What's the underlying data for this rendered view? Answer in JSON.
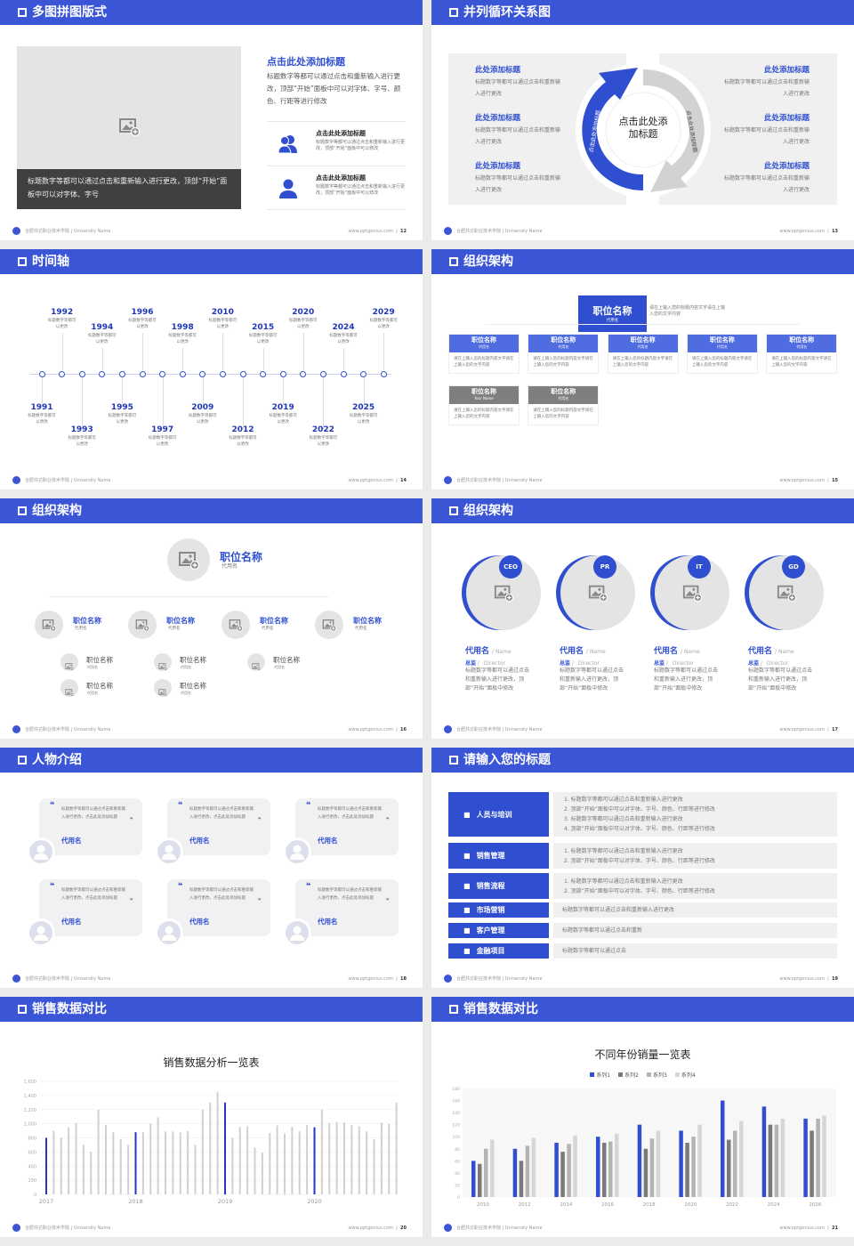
{
  "footer": {
    "school": "合肥共达职业技术学院 | University Name",
    "site": "www.pptgenius.com"
  },
  "colors": {
    "accent": "#3a55d6",
    "gray_bar": "#d0d0d0",
    "dark": "#404040"
  },
  "slides": [
    {
      "title": "多图拼图版式",
      "page": "12",
      "caption": "标题数字等都可以通过点击和重新输入进行更改，顶部“开始”面板中可以对字体、字号",
      "heading": "点击此处添加标题",
      "paragraph": "标题数字等都可以通过点击和重新输入进行更改，顶部“开始”面板中可以对字体、字号、颜色、行距等进行修改",
      "items": [
        {
          "icon": "users-icon",
          "title": "点击此处添加标题",
          "text": "标题数字等都可以通过点击和重新输入进行更改，顶部“开始”面板中可以修改"
        },
        {
          "icon": "user-icon",
          "title": "点击此处添加标题",
          "text": "标题数字等都可以通过点击和重新输入进行更改，顶部“开始”面板中可以修改"
        }
      ]
    },
    {
      "title": "并列循环关系图",
      "page": "13",
      "center": "点击此处添加标题",
      "arc_left": "点击此处添加标题",
      "arc_right": "点击此处添加标题",
      "left_items": [
        {
          "title": "此处添加标题",
          "text": "标题数字等都可以通过点击和重新输入进行更改"
        },
        {
          "title": "此处添加标题",
          "text": "标题数字等都可以通过点击和重新输入进行更改"
        },
        {
          "title": "此处添加标题",
          "text": "标题数字等都可以通过点击和重新输入进行更改"
        }
      ],
      "right_items": [
        {
          "title": "此处添加标题",
          "text": "标题数字等都可以通过点击和重新输入进行更改"
        },
        {
          "title": "此处添加标题",
          "text": "标题数字等都可以通过点击和重新输入进行更改"
        },
        {
          "title": "此处添加标题",
          "text": "标题数字等都可以通过点击和重新输入进行更改"
        }
      ]
    },
    {
      "title": "时间轴",
      "page": "14",
      "events": [
        {
          "year": "1991",
          "text": "标题数字等都可以更改"
        },
        {
          "year": "1992",
          "text": "标题数字等都可以更改"
        },
        {
          "year": "1993",
          "text": "标题数字等都可以更改"
        },
        {
          "year": "1994",
          "text": "标题数字等都可以更改"
        },
        {
          "year": "1995",
          "text": "标题数字等都可以更改"
        },
        {
          "year": "1996",
          "text": "标题数字等都可以更改"
        },
        {
          "year": "1997",
          "text": "标题数字等都可以更改"
        },
        {
          "year": "1998",
          "text": "标题数字等都可以更改"
        },
        {
          "year": "2009",
          "text": "标题数字等都可以更改"
        },
        {
          "year": "2010",
          "text": "标题数字等都可以更改"
        },
        {
          "year": "2012",
          "text": "标题数字等都可以更改"
        },
        {
          "year": "2015",
          "text": "标题数字等都可以更改"
        },
        {
          "year": "2019",
          "text": "标题数字等都可以更改"
        },
        {
          "year": "2020",
          "text": "标题数字等都可以更改"
        },
        {
          "year": "2022",
          "text": "标题数字等都可以更改"
        },
        {
          "year": "2024",
          "text": "标题数字等都可以更改"
        },
        {
          "year": "2025",
          "text": "标题数字等都可以更改"
        },
        {
          "year": "2029",
          "text": "标题数字等都可以更改"
        }
      ]
    },
    {
      "title": "组织架构",
      "page": "15",
      "top": {
        "name": "职位名称",
        "sub": "代用名",
        "text": "请在上输入您的标题内容文字请在上输入您的文字内容"
      },
      "row1": [
        {
          "name": "职位名称",
          "sub": "代用名",
          "text": "请在上输入您的标题内容文字请在上输入您的文字内容"
        },
        {
          "name": "职位名称",
          "sub": "代用名",
          "text": "请在上输入您的标题内容文字请在上输入您的文字内容"
        },
        {
          "name": "职位名称",
          "sub": "代用名",
          "text": "请在上输入您的标题内容文字请在上输入您的文字内容"
        },
        {
          "name": "职位名称",
          "sub": "代用名",
          "text": "请在上输入您的标题内容文字请在上输入您的文字内容"
        },
        {
          "name": "职位名称",
          "sub": "代用名",
          "text": "请在上输入您的标题内容文字请在上输入您的文字内容"
        }
      ],
      "row2": [
        {
          "name": "职位名称",
          "sub": "Your Name",
          "text": "请在上输入您的标题内容文字请在上输入您的文字内容"
        },
        {
          "name": "职位名称",
          "sub": "代用名",
          "text": "请在上输入您的标题内容文字请在上输入您的文字内容"
        }
      ]
    },
    {
      "title": "组织架构",
      "page": "16",
      "top": {
        "name": "职位名称",
        "sub": "代用名"
      },
      "level2": [
        {
          "name": "职位名称",
          "sub": "代用名"
        },
        {
          "name": "职位名称",
          "sub": "代用名"
        },
        {
          "name": "职位名称",
          "sub": "代用名"
        },
        {
          "name": "职位名称",
          "sub": "代用名"
        }
      ],
      "level3": [
        [
          {
            "name": "职位名称",
            "sub": "代用名"
          },
          {
            "name": "职位名称",
            "sub": "代用名"
          }
        ],
        [
          {
            "name": "职位名称",
            "sub": "代用名"
          },
          {
            "name": "职位名称",
            "sub": "代用名"
          }
        ],
        [
          {
            "name": "职位名称",
            "sub": "代用名"
          }
        ]
      ]
    },
    {
      "title": "组织架构",
      "page": "17",
      "people": [
        {
          "badge": "CEO",
          "name": "代用名",
          "name_en": "/ Name",
          "role": "总监",
          "role_en": "Director",
          "text": "标题数字等都可以通过点击和重新输入进行更改，顶部“开始”面板中修改"
        },
        {
          "badge": "PR",
          "name": "代用名",
          "name_en": "/ Name",
          "role": "总监",
          "role_en": "Director",
          "text": "标题数字等都可以通过点击和重新输入进行更改，顶部“开始”面板中修改"
        },
        {
          "badge": "IT",
          "name": "代用名",
          "name_en": "/ Name",
          "role": "总监",
          "role_en": "Director",
          "text": "标题数字等都可以通过点击和重新输入进行更改，顶部“开始”面板中修改"
        },
        {
          "badge": "GD",
          "name": "代用名",
          "name_en": "/ Name",
          "role": "总监",
          "role_en": "Director",
          "text": "标题数字等都可以通过点击和重新输入进行更改，顶部“开始”面板中修改"
        }
      ]
    },
    {
      "title": "人物介绍",
      "page": "18",
      "cards": [
        {
          "quote": "标题数字等都可以通过点击和重新输入进行更改，点击此处添加标题",
          "name": "代用名"
        },
        {
          "quote": "标题数字等都可以通过点击和重新输入进行更改，点击此处添加标题",
          "name": "代用名"
        },
        {
          "quote": "标题数字等都可以通过点击和重新输入进行更改，点击此处添加标题",
          "name": "代用名"
        },
        {
          "quote": "标题数字等都可以通过点击和重新输入进行更改，点击此处添加标题",
          "name": "代用名"
        },
        {
          "quote": "标题数字等都可以通过点击和重新输入进行更改，点击此处添加标题",
          "name": "代用名"
        },
        {
          "quote": "标题数字等都可以通过点击和重新输入进行更改，点击此处添加标题",
          "name": "代用名"
        }
      ]
    },
    {
      "title": "请输入您的标题",
      "page": "19",
      "rows": [
        {
          "icon": "training-icon",
          "label": "人员与培训",
          "lines": [
            "1.  标题数字等都可以通过点击和重新输入进行更改",
            "2.  顶部“开始”面板中可以对字体、字号、颜色、行距等进行修改",
            "3.  标题数字等都可以通过点击和重新输入进行更改",
            "4.  顶部“开始”面板中可以对字体、字号、颜色、行距等进行修改"
          ]
        },
        {
          "icon": "sales-manage-icon",
          "label": "销售管理",
          "lines": [
            "1.  标题数字等都可以通过点击和重新输入进行更改",
            "2.  顶部“开始”面板中可以对字体、字号、颜色、行距等进行修改"
          ]
        },
        {
          "icon": "cycle-icon",
          "label": "销售流程",
          "lines": [
            "1.  标题数字等都可以通过点击和重新输入进行更改",
            "2.  顶部“开始”面板中可以对字体、字号、颜色、行距等进行修改"
          ]
        },
        {
          "icon": "bar-chart-icon",
          "label": "市场营销",
          "lines": [
            "标题数字等都可以通过点击和重新输入进行更改"
          ]
        },
        {
          "icon": "customers-icon",
          "label": "客户管理",
          "lines": [
            "标题数字等都可以通过点击和重新"
          ]
        },
        {
          "icon": "finance-icon",
          "label": "金融项目",
          "lines": [
            "标题数字等都可以通过点击"
          ]
        }
      ]
    },
    {
      "title": "销售数据对比",
      "page": "20"
    },
    {
      "title": "销售数据对比",
      "page": "21"
    }
  ],
  "chart_data": [
    {
      "type": "bar",
      "title": "销售数据分析一览表",
      "ylim": [
        0,
        1600
      ],
      "yticks": [
        "0",
        "200",
        "400",
        "600",
        "800",
        "1,000",
        "1,200",
        "1,400",
        "1,600"
      ],
      "xlabels": [
        "2017",
        "2018",
        "2019",
        "2020"
      ],
      "highlight_color": "#2436c8",
      "bar_color": "#d0d0d0",
      "values": [
        800,
        900,
        800,
        950,
        1010,
        700,
        600,
        1200,
        980,
        880,
        780,
        700,
        880,
        880,
        1000,
        1090,
        890,
        890,
        875,
        895,
        700,
        1200,
        1300,
        1450,
        1300,
        800,
        955,
        965,
        660,
        590,
        870,
        975,
        860,
        955,
        890,
        980,
        950,
        1200,
        1010,
        1025,
        1020,
        980,
        965,
        890,
        780,
        1015,
        995,
        1300
      ],
      "highlighted": [
        0,
        12,
        24,
        36
      ]
    },
    {
      "type": "bar",
      "title": "不同年份销量一览表",
      "ylim": [
        0,
        180
      ],
      "legend": "top",
      "yticks": [
        "0",
        "20",
        "40",
        "60",
        "80",
        "100",
        "120",
        "140",
        "160",
        "180"
      ],
      "categories": [
        "2010",
        "2012",
        "2014",
        "2016",
        "2018",
        "2020",
        "2022",
        "2024",
        "2026"
      ],
      "series": [
        {
          "name": "系列1",
          "color": "#2f4fd0",
          "values": [
            60,
            80,
            90,
            100,
            120,
            110,
            160,
            150,
            130
          ]
        },
        {
          "name": "系列2",
          "color": "#7a7a7a",
          "values": [
            55,
            60,
            75,
            90,
            80,
            90,
            95,
            120,
            110
          ]
        },
        {
          "name": "系列3",
          "color": "#b4b4b4",
          "values": [
            80,
            85,
            88,
            92,
            97,
            100,
            110,
            120,
            130
          ]
        },
        {
          "name": "系列4",
          "color": "#d6d6d6",
          "values": [
            95,
            98,
            102,
            105,
            110,
            120,
            126,
            130,
            135
          ]
        }
      ]
    }
  ]
}
